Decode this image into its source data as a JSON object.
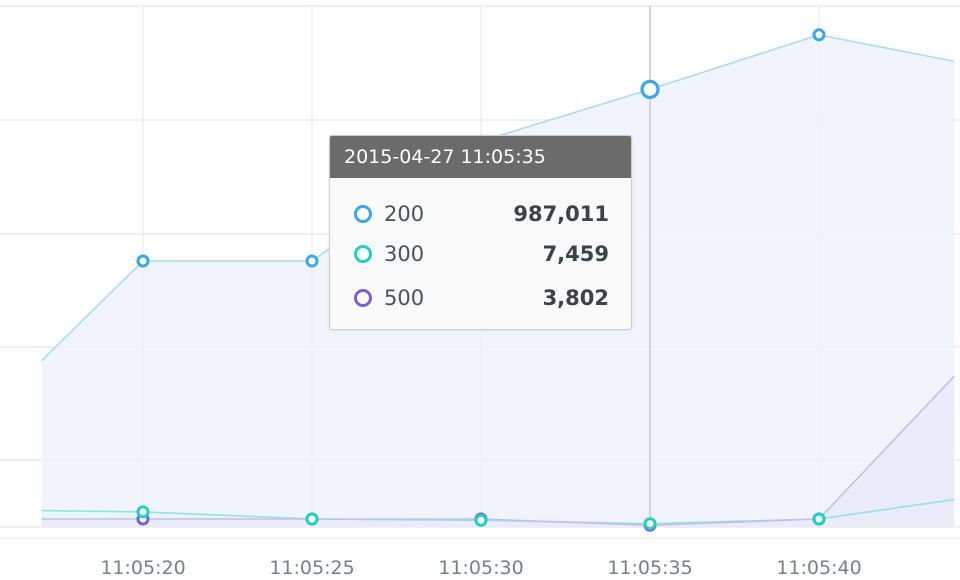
{
  "chart_data": {
    "type": "area",
    "x": [
      "11:05:17",
      "11:05:20",
      "11:05:25",
      "11:05:30",
      "11:05:35",
      "11:05:40",
      "11:05:44"
    ],
    "x_tick_labels": [
      "11:05:20",
      "11:05:25",
      "11:05:30",
      "11:05:35",
      "11:05:40"
    ],
    "series": [
      {
        "name": "200",
        "color": "#3ba7ea",
        "line_color": "#a9dcf2",
        "fill": "#eef2fb",
        "values": [
          375000,
          600000,
          600000,
          870000,
          987011,
          1110000,
          1050000
        ]
      },
      {
        "name": "300",
        "color": "#21cfc2",
        "line_color": "#8fe6df",
        "fill": "#e6f4fa",
        "values": [
          37000,
          34000,
          18000,
          15000,
          7459,
          18000,
          62000
        ]
      },
      {
        "name": "500",
        "color": "#7b5fd6",
        "line_color": "#c6bdea",
        "fill": "#eaeaf8",
        "values": [
          18000,
          18000,
          18000,
          18000,
          3802,
          18000,
          340000
        ]
      }
    ],
    "ylim": [
      0,
      1175000
    ],
    "grid": true,
    "legend": "none",
    "hover_index": 4
  },
  "tooltip": {
    "title": "2015-04-27 11:05:35",
    "rows": [
      {
        "name": "200",
        "value": "987,011",
        "color": "#3ba7ea"
      },
      {
        "name": "300",
        "value": "7,459",
        "color": "#21cfc2"
      },
      {
        "name": "500",
        "value": "3,802",
        "color": "#7b5fd6"
      }
    ]
  }
}
